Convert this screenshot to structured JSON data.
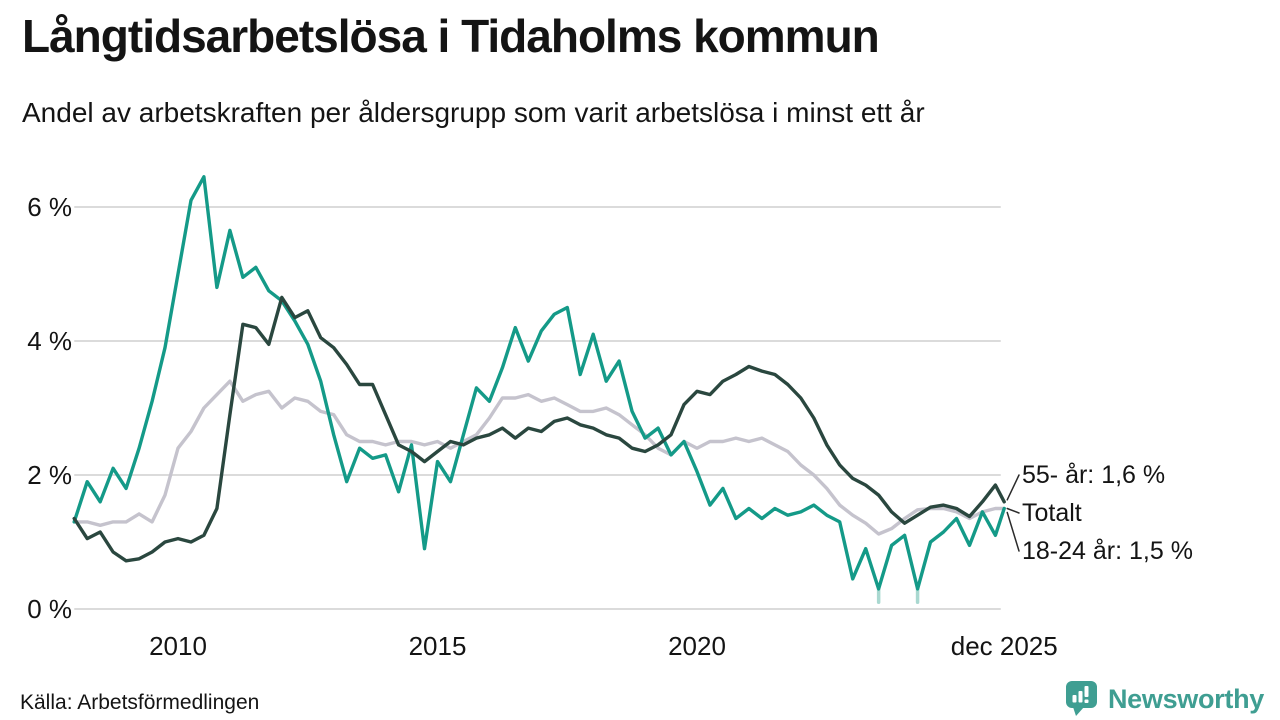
{
  "header": {
    "title": "Långtidsarbetslösa i Tidaholms kommun",
    "subtitle": "Andel av arbetskraften per åldersgrupp som varit arbetslösa i minst ett år"
  },
  "footer": {
    "source": "Källa: Arbetsförmedlingen",
    "brand": "Newsworthy"
  },
  "colors": {
    "teal_series": "#149a88",
    "dark_series": "#2a473f",
    "total_series": "#c5c3cd",
    "grid": "#dbdbdb",
    "leader": "#2b2b2b",
    "text": "#141414",
    "brand_teal": "#3f9e92",
    "faded_teal": "#a9d8d0"
  },
  "chart_data": {
    "type": "line",
    "title": "Långtidsarbetslösa i Tidaholms kommun",
    "subtitle": "Andel av arbetskraften per åldersgrupp som varit arbetslösa i minst ett år",
    "xlabel": "",
    "ylabel": "",
    "grid": "horizontal",
    "legend_position": "end-of-line-labels",
    "xlim": [
      2008,
      2026
    ],
    "ylim": [
      0,
      6.6
    ],
    "y_ticks": [
      6,
      4,
      2,
      0
    ],
    "y_tick_labels": [
      "6 %",
      "4 %",
      "2 %",
      "0 %"
    ],
    "x_tick_years": [
      2010,
      2015,
      2020,
      2025.92
    ],
    "x_tick_labels": [
      "2010",
      "2015",
      "2020",
      "dec 2025"
    ],
    "x": [
      2008.0,
      2008.25,
      2008.5,
      2008.75,
      2009.0,
      2009.25,
      2009.5,
      2009.75,
      2010.0,
      2010.25,
      2010.5,
      2010.75,
      2011.0,
      2011.25,
      2011.5,
      2011.75,
      2012.0,
      2012.25,
      2012.5,
      2012.75,
      2013.0,
      2013.25,
      2013.5,
      2013.75,
      2014.0,
      2014.25,
      2014.5,
      2014.75,
      2015.0,
      2015.25,
      2015.5,
      2015.75,
      2016.0,
      2016.25,
      2016.5,
      2016.75,
      2017.0,
      2017.25,
      2017.5,
      2017.75,
      2018.0,
      2018.25,
      2018.5,
      2018.75,
      2019.0,
      2019.25,
      2019.5,
      2019.75,
      2020.0,
      2020.25,
      2020.5,
      2020.75,
      2021.0,
      2021.25,
      2021.5,
      2021.75,
      2022.0,
      2022.25,
      2022.5,
      2022.75,
      2023.0,
      2023.25,
      2023.5,
      2023.75,
      2024.0,
      2024.25,
      2024.5,
      2024.75,
      2025.0,
      2025.25,
      2025.5,
      2025.75,
      2025.92
    ],
    "series": [
      {
        "name": "Totalt",
        "color": "#c5c3cd",
        "final_value_pct": 1.5,
        "values": [
          1.3,
          1.3,
          1.25,
          1.3,
          1.3,
          1.42,
          1.3,
          1.7,
          2.4,
          2.65,
          3.0,
          3.2,
          3.4,
          3.1,
          3.2,
          3.25,
          3.0,
          3.15,
          3.1,
          2.95,
          2.9,
          2.6,
          2.5,
          2.5,
          2.45,
          2.5,
          2.5,
          2.45,
          2.5,
          2.4,
          2.5,
          2.6,
          2.85,
          3.15,
          3.15,
          3.2,
          3.1,
          3.15,
          3.05,
          2.95,
          2.95,
          3.0,
          2.9,
          2.75,
          2.6,
          2.4,
          2.3,
          2.5,
          2.4,
          2.5,
          2.5,
          2.55,
          2.5,
          2.55,
          2.45,
          2.35,
          2.15,
          2.0,
          1.8,
          1.55,
          1.4,
          1.28,
          1.12,
          1.2,
          1.35,
          1.48,
          1.5,
          1.5,
          1.45,
          1.35,
          1.45,
          1.5,
          1.5
        ]
      },
      {
        "name": "18-24 år",
        "color": "#149a88",
        "final_value_pct": 1.5,
        "values": [
          1.3,
          1.9,
          1.6,
          2.1,
          1.8,
          2.4,
          3.1,
          3.9,
          5.0,
          6.1,
          6.45,
          4.8,
          5.65,
          4.95,
          5.1,
          4.75,
          4.6,
          4.3,
          3.95,
          3.4,
          2.6,
          1.9,
          2.4,
          2.25,
          2.3,
          1.75,
          2.45,
          0.9,
          2.2,
          1.9,
          2.6,
          3.3,
          3.1,
          3.6,
          4.2,
          3.7,
          4.15,
          4.4,
          4.5,
          3.5,
          4.1,
          3.4,
          3.7,
          2.95,
          2.55,
          2.7,
          2.3,
          2.5,
          2.05,
          1.55,
          1.8,
          1.35,
          1.5,
          1.35,
          1.5,
          1.4,
          1.45,
          1.55,
          1.4,
          1.3,
          0.45,
          0.9,
          0.3,
          0.95,
          1.1,
          0.3,
          1.0,
          1.15,
          1.35,
          0.95,
          1.45,
          1.1,
          1.5
        ]
      },
      {
        "name": "55- år",
        "color": "#2a473f",
        "final_value_pct": 1.6,
        "values": [
          1.35,
          1.05,
          1.15,
          0.85,
          0.72,
          0.75,
          0.85,
          1.0,
          1.05,
          1.0,
          1.1,
          1.5,
          2.9,
          4.25,
          4.2,
          3.95,
          4.65,
          4.35,
          4.45,
          4.05,
          3.9,
          3.65,
          3.35,
          3.35,
          2.9,
          2.45,
          2.35,
          2.2,
          2.35,
          2.5,
          2.45,
          2.55,
          2.6,
          2.7,
          2.55,
          2.7,
          2.65,
          2.8,
          2.85,
          2.75,
          2.7,
          2.6,
          2.55,
          2.4,
          2.35,
          2.45,
          2.6,
          3.05,
          3.25,
          3.2,
          3.4,
          3.5,
          3.62,
          3.55,
          3.5,
          3.35,
          3.15,
          2.85,
          2.45,
          2.15,
          1.95,
          1.85,
          1.7,
          1.45,
          1.28,
          1.4,
          1.52,
          1.55,
          1.5,
          1.38,
          1.6,
          1.85,
          1.6
        ]
      }
    ],
    "low_marks": [
      {
        "x": 2023.5,
        "from": 0.3,
        "to": 0.1
      },
      {
        "x": 2024.25,
        "from": 0.3,
        "to": 0.1
      }
    ],
    "annotations": [
      {
        "text": "55- år: 1,6 %",
        "series": "55- år"
      },
      {
        "text": "Totalt",
        "series": "Totalt"
      },
      {
        "text": "18-24 år: 1,5 %",
        "series": "18-24 år"
      }
    ]
  }
}
